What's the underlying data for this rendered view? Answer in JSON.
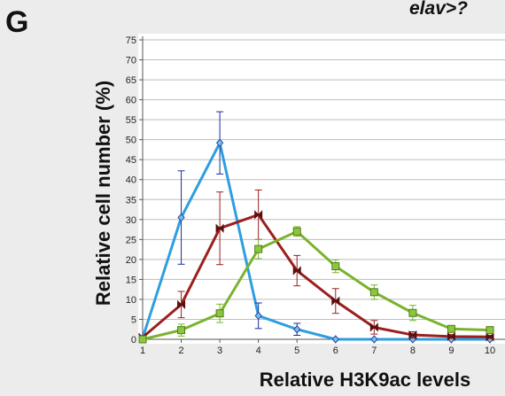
{
  "panel_label": "G",
  "header_text": "elav>?",
  "chart_data": {
    "type": "line",
    "title": "",
    "xlabel": "Relative H3K9ac levels",
    "ylabel": "Relative cell number (%)",
    "x": [
      1,
      2,
      3,
      4,
      5,
      6,
      7,
      8,
      9,
      10
    ],
    "xlim": [
      1,
      10
    ],
    "ylim": [
      0,
      75
    ],
    "y_ticks": [
      0,
      5,
      10,
      15,
      20,
      25,
      30,
      35,
      40,
      45,
      50,
      55,
      60,
      65,
      70,
      75
    ],
    "x_ticks": [
      1,
      2,
      3,
      4,
      5,
      6,
      7,
      8,
      9,
      10
    ],
    "grid": true,
    "series": [
      {
        "color": "#2e9ee0",
        "error_color": "#1a2d9e",
        "marker": "diamond",
        "marker_color": "#1e4aa8",
        "values": [
          0.3,
          30.5,
          49.2,
          5.9,
          2.5,
          0,
          0,
          0,
          0,
          0
        ],
        "errors": [
          0,
          11.7,
          7.8,
          3.2,
          1.5,
          0,
          0,
          0,
          0,
          0
        ]
      },
      {
        "color": "#9c1f1f",
        "error_color": "#9c1f1f",
        "marker": "bowtie",
        "marker_color": "#5a1010",
        "values": [
          0.5,
          8.7,
          27.8,
          31.2,
          17.2,
          9.6,
          3.0,
          1.1,
          0.7,
          0.6
        ],
        "errors": [
          0,
          3.3,
          9.1,
          6.2,
          3.8,
          3.1,
          1.7,
          0.8,
          0.5,
          0.4
        ]
      },
      {
        "color": "#7ab32e",
        "error_color": "#7ab32e",
        "marker": "square",
        "marker_color": "#7ab32e",
        "values": [
          0,
          2.3,
          6.5,
          22.6,
          27.0,
          18.3,
          11.8,
          6.6,
          2.6,
          2.3
        ],
        "errors": [
          0,
          1.5,
          2.3,
          2.4,
          1.2,
          1.6,
          1.8,
          1.9,
          0.4,
          0.4
        ]
      }
    ]
  }
}
